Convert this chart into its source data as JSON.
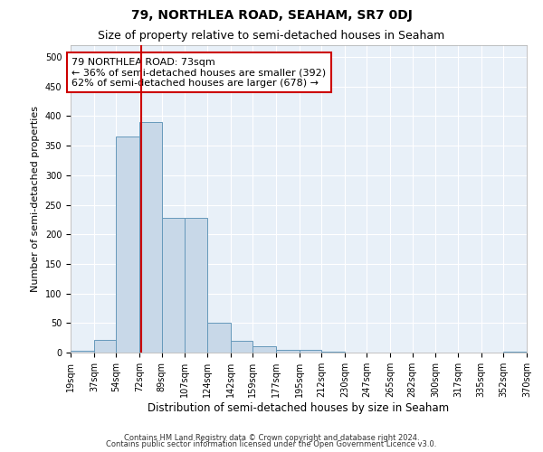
{
  "title": "79, NORTHLEA ROAD, SEAHAM, SR7 0DJ",
  "subtitle": "Size of property relative to semi-detached houses in Seaham",
  "xlabel": "Distribution of semi-detached houses by size in Seaham",
  "ylabel": "Number of semi-detached properties",
  "footnote1": "Contains HM Land Registry data © Crown copyright and database right 2024.",
  "footnote2": "Contains public sector information licensed under the Open Government Licence v3.0.",
  "property_size": 73,
  "annotation_line1": "79 NORTHLEA ROAD: 73sqm",
  "annotation_line2": "← 36% of semi-detached houses are smaller (392)",
  "annotation_line3": "62% of semi-detached houses are larger (678) →",
  "bar_color": "#c8d8e8",
  "bar_edge_color": "#6699bb",
  "red_line_color": "#cc0000",
  "annotation_box_color": "#cc0000",
  "bin_edges": [
    19,
    37,
    54,
    72,
    89,
    107,
    124,
    142,
    159,
    177,
    195,
    212,
    230,
    247,
    265,
    282,
    300,
    317,
    335,
    352,
    370
  ],
  "bin_labels": [
    "19sqm",
    "37sqm",
    "54sqm",
    "72sqm",
    "89sqm",
    "107sqm",
    "124sqm",
    "142sqm",
    "159sqm",
    "177sqm",
    "195sqm",
    "212sqm",
    "230sqm",
    "247sqm",
    "265sqm",
    "282sqm",
    "300sqm",
    "317sqm",
    "335sqm",
    "352sqm",
    "370sqm"
  ],
  "bar_heights": [
    3,
    22,
    365,
    390,
    228,
    228,
    50,
    20,
    10,
    5,
    5,
    1,
    0,
    0,
    0,
    0,
    0,
    0,
    0,
    2
  ],
  "ylim": [
    0,
    520
  ],
  "yticks": [
    0,
    50,
    100,
    150,
    200,
    250,
    300,
    350,
    400,
    450,
    500
  ],
  "background_color": "#ffffff",
  "ax_background_color": "#e8f0f8",
  "grid_color": "#ffffff",
  "title_fontsize": 10,
  "subtitle_fontsize": 9,
  "tick_fontsize": 7,
  "ylabel_fontsize": 8,
  "xlabel_fontsize": 8.5,
  "footnote_fontsize": 6,
  "annotation_fontsize": 8
}
